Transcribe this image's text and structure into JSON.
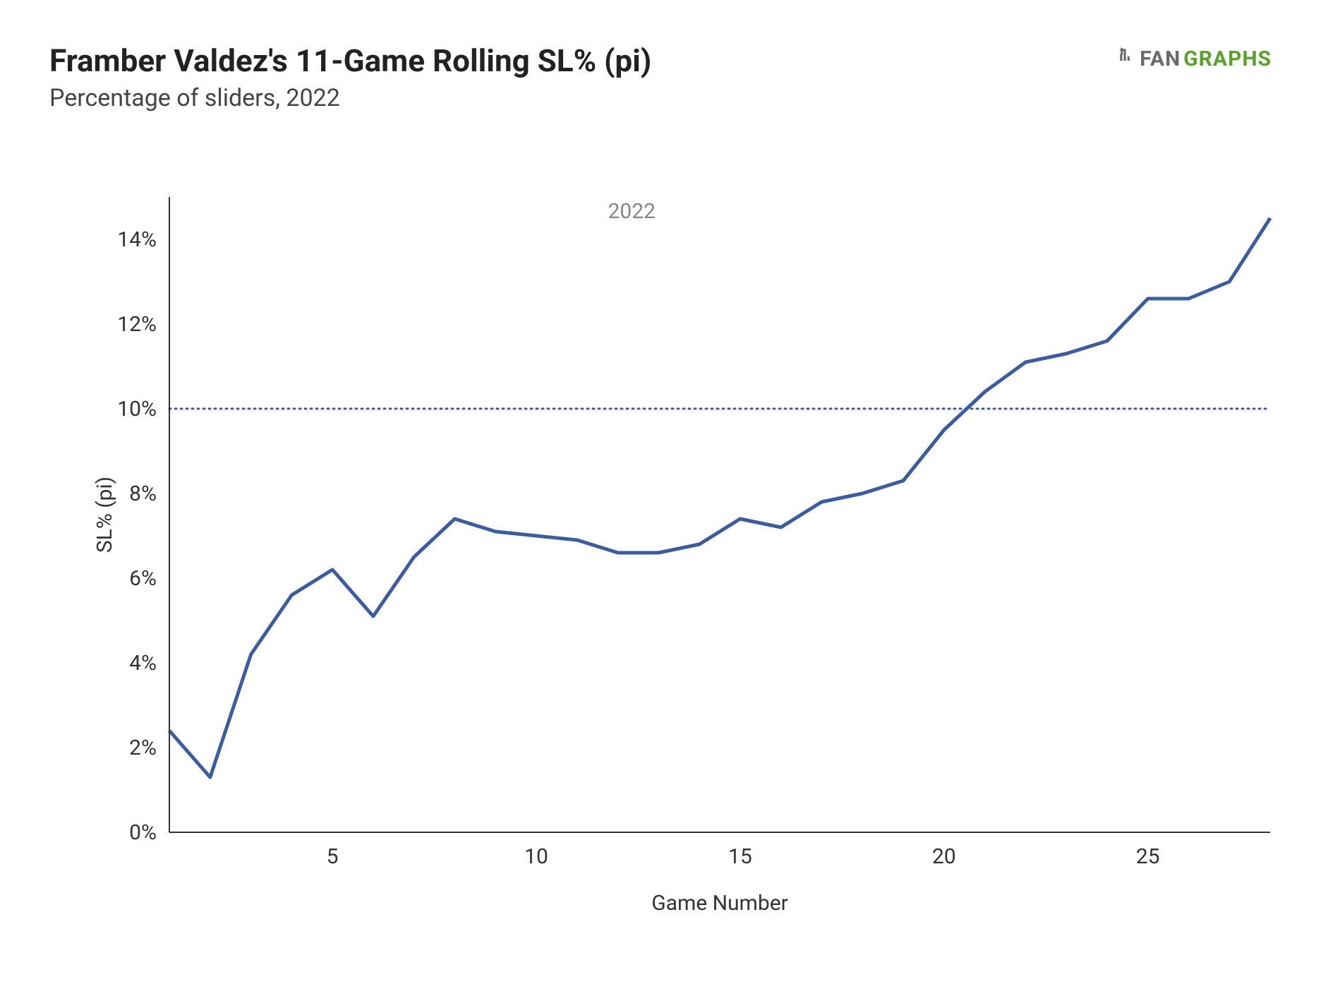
{
  "header": {
    "title": "Framber Valdez's 11-Game Rolling SL% (pi)",
    "subtitle": "Percentage of sliders, 2022",
    "logo_fan": "FAN",
    "logo_graphs": "GRAPHS"
  },
  "chart": {
    "type": "line",
    "series_label": "2022",
    "xlabel": "Game Number",
    "ylabel": "SL% (pi)",
    "x": [
      1,
      2,
      3,
      4,
      5,
      6,
      7,
      8,
      9,
      10,
      11,
      12,
      13,
      14,
      15,
      16,
      17,
      18,
      19,
      20,
      21,
      22,
      23,
      24,
      25,
      26,
      27,
      28
    ],
    "y": [
      2.4,
      1.3,
      4.2,
      5.6,
      6.2,
      5.1,
      6.5,
      7.4,
      7.1,
      7.0,
      6.9,
      6.6,
      6.6,
      6.8,
      7.4,
      7.2,
      7.8,
      8.0,
      8.3,
      9.5,
      10.4,
      11.1,
      11.3,
      11.6,
      12.6,
      12.6,
      13.0,
      14.5
    ],
    "line_color": "#3b5c9f",
    "line_width": 5,
    "reference_line": {
      "y": 10,
      "color": "#3b5c9f",
      "dash": "2 6"
    },
    "xlim": [
      1,
      28
    ],
    "ylim": [
      0,
      15
    ],
    "xticks": [
      5,
      10,
      15,
      20,
      25
    ],
    "yticks": [
      0,
      2,
      4,
      6,
      8,
      10,
      12,
      14
    ],
    "ytick_suffix": "%",
    "background_color": "#ffffff",
    "axis_color": "#333333",
    "tick_fontsize": 30,
    "label_fontsize": 30,
    "title_fontsize": 44,
    "subtitle_fontsize": 34,
    "logo_colors": {
      "fan": "#6a6a6a",
      "graphs": "#5aa02c"
    }
  }
}
